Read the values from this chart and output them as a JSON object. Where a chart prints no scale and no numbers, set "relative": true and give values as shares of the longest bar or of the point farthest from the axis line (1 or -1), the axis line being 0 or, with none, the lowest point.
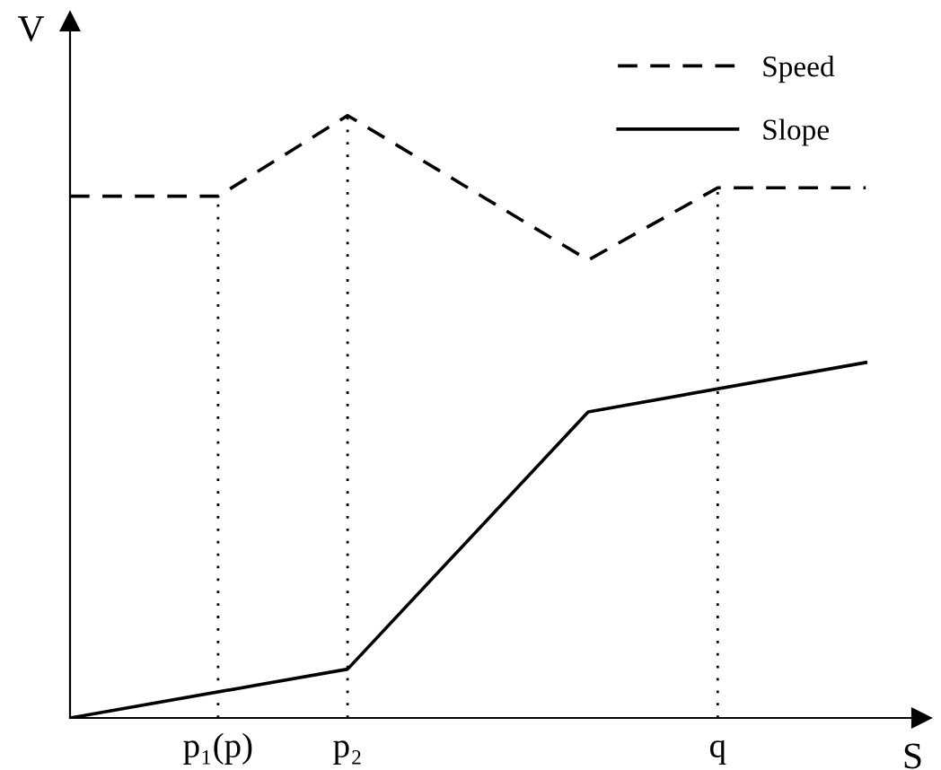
{
  "chart_data": {
    "type": "line",
    "relative": true,
    "xlabel": "S",
    "ylabel": "V",
    "categories": [
      null,
      null,
      null,
      null,
      null,
      null,
      null,
      null,
      "p₁(p)",
      null,
      null,
      null,
      null,
      null,
      null,
      "p₂",
      null,
      null,
      null,
      null,
      null,
      null,
      null,
      null,
      null,
      null,
      null,
      null,
      null,
      null,
      null,
      null,
      null,
      null,
      null,
      "q",
      null,
      null,
      null,
      null,
      null,
      null,
      null,
      null,
      null,
      null,
      null
    ],
    "series": [
      {
        "name": "Speed",
        "color": "#000000",
        "line_style": "dashed",
        "values": [
          0.866,
          null,
          null,
          null,
          null,
          null,
          null,
          null,
          0.866,
          null,
          null,
          null,
          null,
          null,
          null,
          1,
          null,
          null,
          null,
          null,
          null,
          null,
          null,
          null,
          null,
          null,
          null,
          null,
          0.76,
          null,
          null,
          null,
          null,
          null,
          null,
          0.88,
          null,
          null,
          null,
          null,
          null,
          null,
          null,
          0.88,
          null,
          null,
          null
        ]
      },
      {
        "name": "Slope",
        "color": "#000000",
        "line_style": "solid",
        "values": [
          0,
          null,
          null,
          null,
          null,
          null,
          null,
          null,
          null,
          null,
          null,
          null,
          null,
          null,
          null,
          0.081,
          null,
          null,
          null,
          null,
          null,
          null,
          null,
          null,
          null,
          null,
          null,
          null,
          0.508,
          null,
          null,
          null,
          null,
          null,
          null,
          null,
          null,
          null,
          null,
          null,
          null,
          null,
          null,
          0.59,
          null,
          null,
          null
        ]
      }
    ],
    "legend": "top right",
    "grid": "x"
  }
}
